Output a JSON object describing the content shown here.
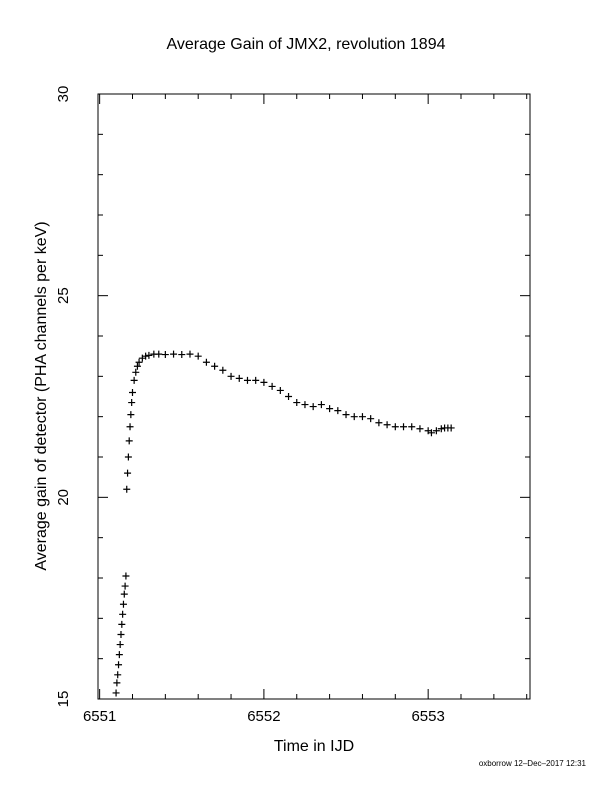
{
  "footer_text": "oxborrow 12–Dec–2017 12:31",
  "chart_data": {
    "type": "scatter",
    "title": "Average Gain of JMX2, revolution 1894",
    "xlabel": "Time in IJD",
    "ylabel": "Average gain of detector (PHA channels per keV)",
    "xlim": [
      6550.99,
      6553.62
    ],
    "ylim": [
      15,
      30
    ],
    "xticks": [
      "6551",
      "6552",
      "6553"
    ],
    "xtick_values": [
      6551,
      6552,
      6553
    ],
    "yticks": [
      "15",
      "20",
      "25",
      "30"
    ],
    "ytick_values": [
      15,
      20,
      25,
      30
    ],
    "grid": false,
    "marker": "plus",
    "series": [
      {
        "x": [
          6551.1,
          6551.105,
          6551.11,
          6551.115,
          6551.12,
          6551.125,
          6551.13,
          6551.135,
          6551.14,
          6551.145,
          6551.15,
          6551.155,
          6551.16,
          6551.165,
          6551.17,
          6551.175,
          6551.18,
          6551.185,
          6551.19,
          6551.195,
          6551.2,
          6551.21,
          6551.22,
          6551.23,
          6551.24,
          6551.26,
          6551.28,
          6551.3,
          6551.33,
          6551.36,
          6551.4,
          6551.45,
          6551.5,
          6551.55,
          6551.6,
          6551.65,
          6551.7,
          6551.75,
          6551.8,
          6551.85,
          6551.9,
          6551.95,
          6552.0,
          6552.05,
          6552.1,
          6552.15,
          6552.2,
          6552.25,
          6552.3,
          6552.35,
          6552.4,
          6552.45,
          6552.5,
          6552.55,
          6552.6,
          6552.65,
          6552.7,
          6552.75,
          6552.8,
          6552.85,
          6552.9,
          6552.95,
          6553.0,
          6553.02,
          6553.05,
          6553.08,
          6553.1,
          6553.12,
          6553.14
        ],
        "y": [
          15.15,
          15.4,
          15.6,
          15.85,
          16.1,
          16.35,
          16.6,
          16.85,
          17.1,
          17.35,
          17.6,
          17.8,
          18.05,
          20.2,
          20.6,
          21.0,
          21.4,
          21.75,
          22.05,
          22.35,
          22.6,
          22.9,
          23.1,
          23.25,
          23.35,
          23.45,
          23.5,
          23.52,
          23.55,
          23.55,
          23.54,
          23.55,
          23.54,
          23.55,
          23.5,
          23.35,
          23.25,
          23.15,
          23.0,
          22.95,
          22.9,
          22.9,
          22.85,
          22.75,
          22.65,
          22.5,
          22.35,
          22.3,
          22.25,
          22.3,
          22.2,
          22.15,
          22.05,
          22.0,
          22.0,
          21.95,
          21.85,
          21.8,
          21.75,
          21.75,
          21.75,
          21.7,
          21.65,
          21.6,
          21.65,
          21.7,
          21.72,
          21.72,
          21.72
        ]
      }
    ]
  }
}
